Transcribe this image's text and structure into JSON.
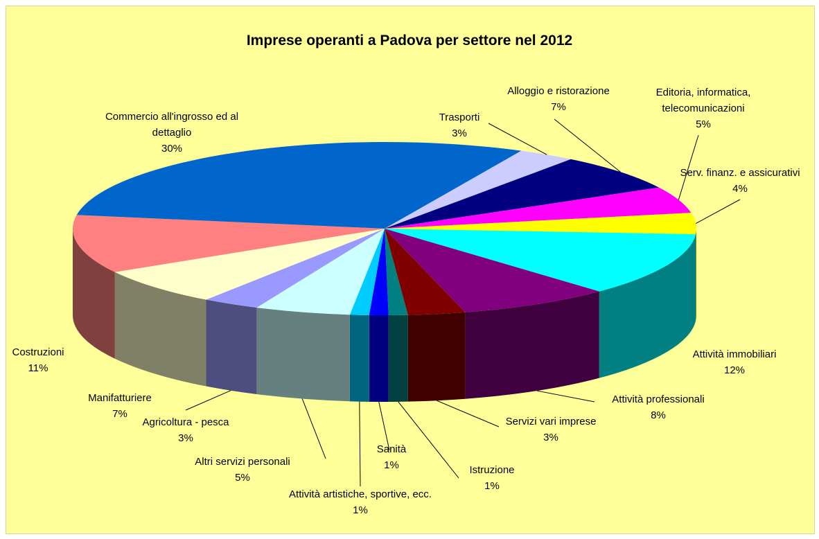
{
  "chart_data": {
    "type": "pie",
    "title": "Imprese operanti a Padova per settore nel 2012",
    "categories": [
      "Trasporti",
      "Alloggio e ristorazione",
      "Editoria, informatica, telecomunicazioni",
      "Serv. finanz. e assicurativi",
      "Attività immobiliari",
      "Attività professionali",
      "Servizi vari imprese",
      "Istruzione",
      "Sanità",
      "Attività artistiche, sportive, ecc.",
      "Altri servizi personali",
      "Agricoltura - pesca",
      "Manifatturiere",
      "Costruzioni",
      "Commercio all'ingrosso ed al dettaglio"
    ],
    "values": [
      3,
      7,
      5,
      4,
      12,
      8,
      3,
      1,
      1,
      1,
      5,
      3,
      7,
      11,
      30
    ],
    "value_labels": [
      "3%",
      "7%",
      "5%",
      "4%",
      "12%",
      "8%",
      "3%",
      "1%",
      "1%",
      "1%",
      "5%",
      "3%",
      "7%",
      "11%",
      "30%"
    ],
    "colors": [
      "#CCCCFF",
      "#000080",
      "#FF00FF",
      "#FFFF00",
      "#00FFFF",
      "#800080",
      "#800000",
      "#008080",
      "#0000FF",
      "#00CCFF",
      "#CCFFFF",
      "#9999FF",
      "#FFFFCC",
      "#FF8080",
      "#0066CC"
    ]
  }
}
